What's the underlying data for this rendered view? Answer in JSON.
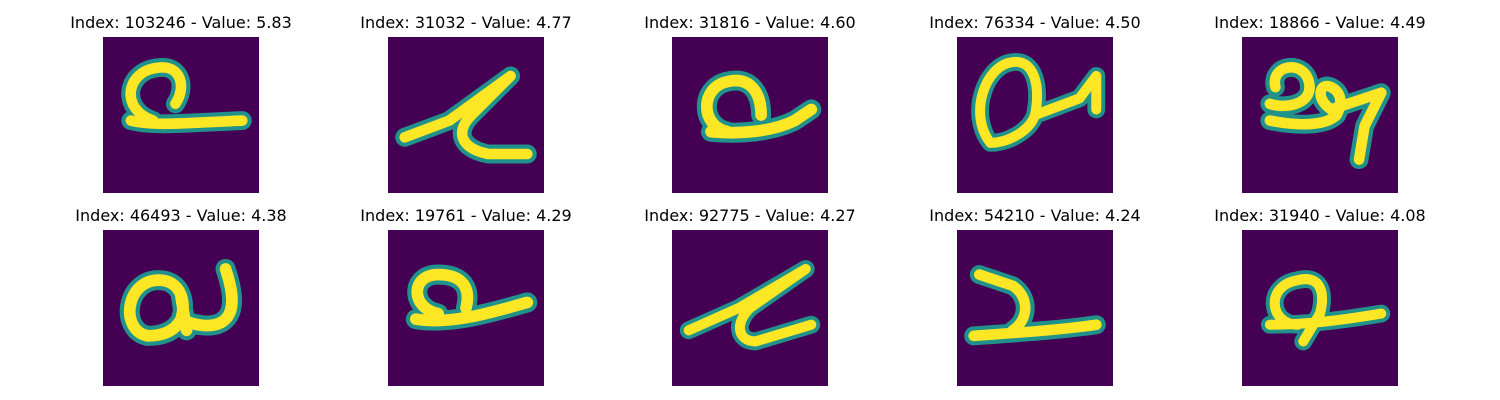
{
  "colors": {
    "background": "#440154",
    "stroke_outer": "#21918c",
    "stroke_inner": "#fde725"
  },
  "panels": [
    {
      "title": "Index: 103246 - Value: 5.83",
      "glyph": "a-loop-tail"
    },
    {
      "title": "Index: 31032 - Value: 4.77",
      "glyph": "slanted-zigzag"
    },
    {
      "title": "Index: 31816 - Value: 4.60",
      "glyph": "a-loop-tail"
    },
    {
      "title": "Index: 76334 - Value: 4.50",
      "glyph": "loop-arrow"
    },
    {
      "title": "Index: 18866 - Value: 4.49",
      "glyph": "a-loop-hook"
    },
    {
      "title": "Index: 46493 - Value: 4.38",
      "glyph": "a-u"
    },
    {
      "title": "Index: 19761 - Value: 4.29",
      "glyph": "a-loop-tail"
    },
    {
      "title": "Index: 92775 - Value: 4.27",
      "glyph": "slanted-zigzag"
    },
    {
      "title": "Index: 54210 - Value: 4.24",
      "glyph": "y-stroke"
    },
    {
      "title": "Index: 31940 - Value: 4.08",
      "glyph": "a-loop-tail"
    }
  ]
}
